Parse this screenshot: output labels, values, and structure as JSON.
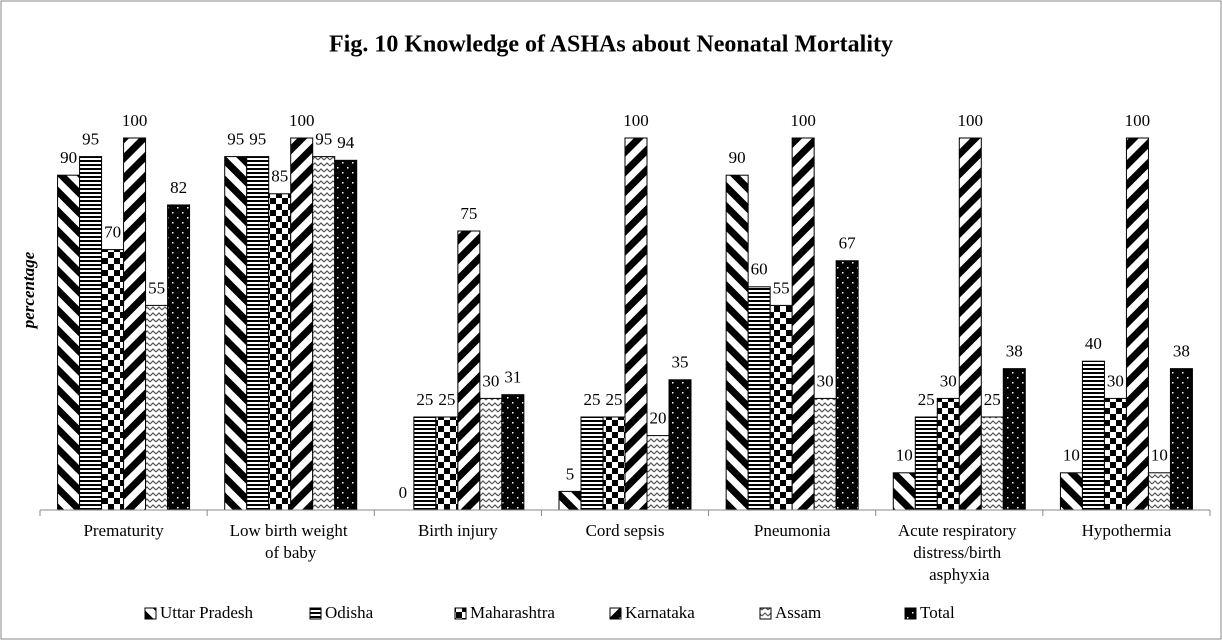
{
  "chart_data": {
    "type": "bar",
    "title": "Fig. 10 Knowledge of ASHAs about  Neonatal Mortality",
    "y_label": "percentage",
    "categories": [
      "Prematurity",
      "Low birth weight of baby",
      "Birth injury",
      "Cord sepsis",
      "Pneumonia",
      "Acute respiratory distress/birth asphyxia",
      "Hypothermia"
    ],
    "series": [
      {
        "name": "Uttar Pradesh",
        "color": "#000000",
        "values": [
          90,
          95,
          0,
          5,
          90,
          10,
          10
        ]
      },
      {
        "name": "Odisha",
        "color": "#000000",
        "values": [
          95,
          95,
          25,
          25,
          60,
          25,
          40
        ]
      },
      {
        "name": "Maharashtra",
        "color": "#000000",
        "values": [
          70,
          85,
          25,
          25,
          55,
          30,
          30
        ]
      },
      {
        "name": "Karnataka",
        "color": "#000000",
        "values": [
          100,
          100,
          75,
          100,
          100,
          100,
          100
        ]
      },
      {
        "name": "Assam",
        "color": "#000000",
        "values": [
          55,
          95,
          30,
          20,
          30,
          25,
          10
        ]
      },
      {
        "name": "Total",
        "color": "#000000",
        "values": [
          82,
          94,
          31,
          35,
          67,
          38,
          38
        ]
      }
    ],
    "ylim": [
      0,
      100
    ],
    "legend": "bottom"
  }
}
